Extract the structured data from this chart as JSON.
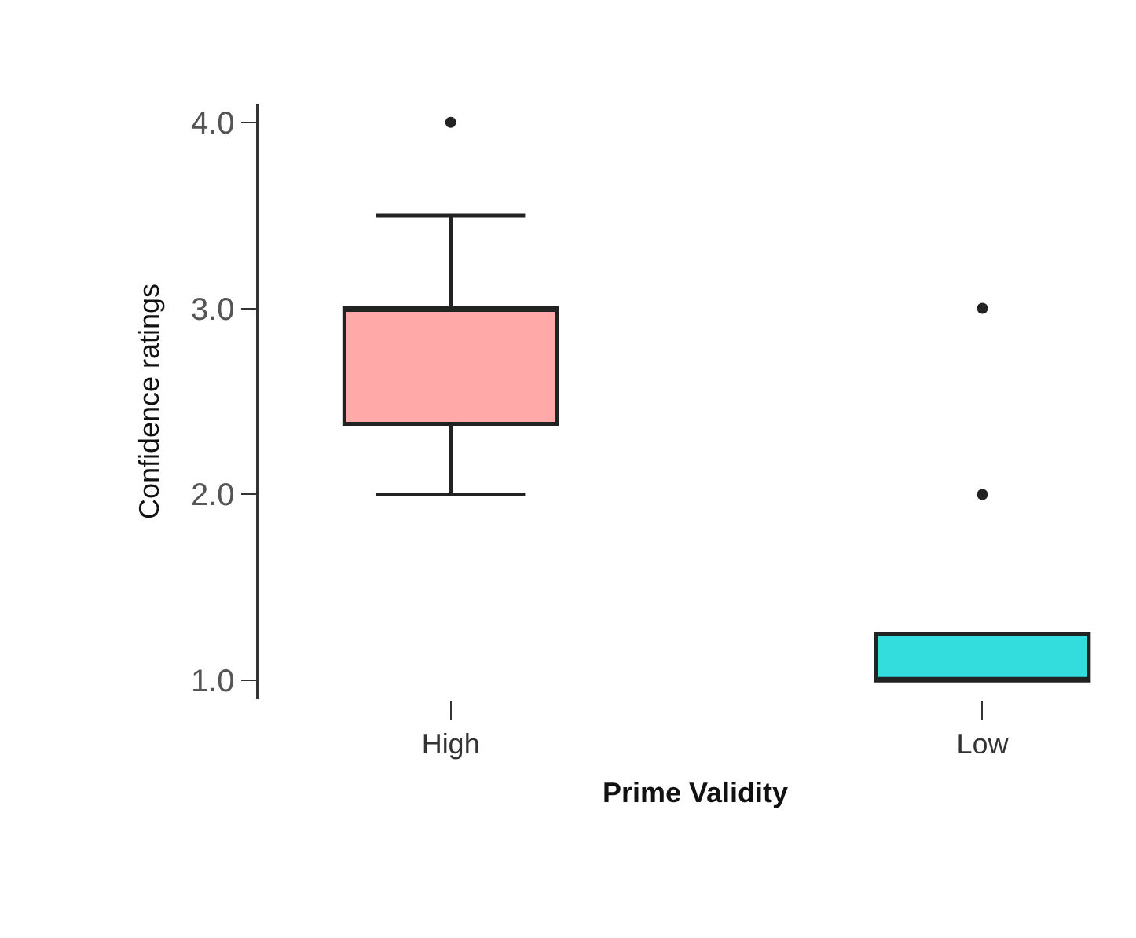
{
  "chart_data": {
    "type": "box",
    "xlabel": "Prime Validity",
    "ylabel": "Confidence ratings",
    "categories": [
      "High",
      "Low"
    ],
    "series": [
      {
        "color": "#ffaaa8",
        "boxes": [
          {
            "low": 2.0,
            "q1": 2.38,
            "median": 3.0,
            "q3": 3.0,
            "high": 3.5,
            "outliers": [
              4.0
            ]
          },
          null
        ]
      },
      {
        "color": "#33dddd",
        "boxes": [
          null,
          {
            "low": 1.0,
            "q1": 1.0,
            "median": 1.0,
            "q3": 1.25,
            "high": 1.25,
            "outliers": [
              2.0,
              3.0
            ]
          }
        ]
      }
    ],
    "ylim": [
      0.9,
      4.1
    ],
    "yticks": [
      {
        "value": 1,
        "label": "1.0"
      },
      {
        "value": 2,
        "label": "2.0"
      },
      {
        "value": 3,
        "label": "3.0"
      },
      {
        "value": 4,
        "label": "4.0"
      }
    ]
  }
}
